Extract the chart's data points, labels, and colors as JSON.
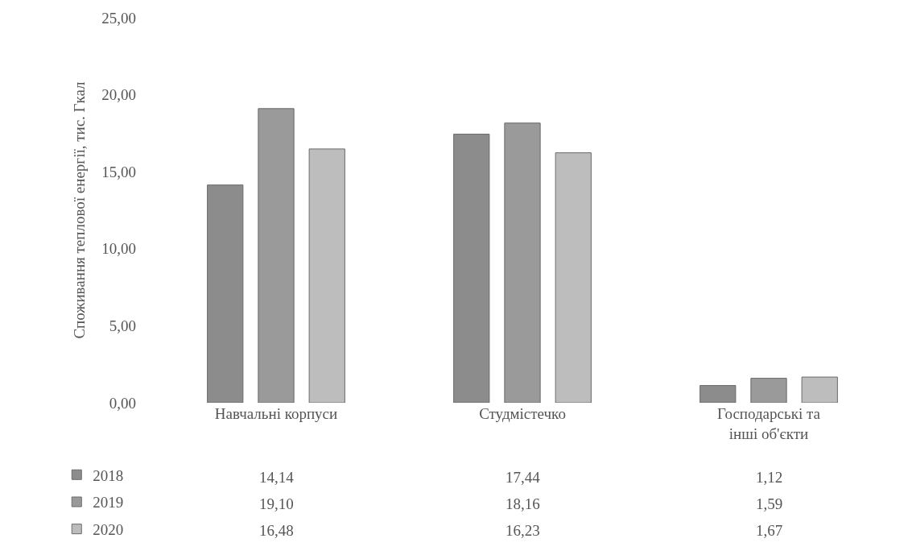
{
  "chart_data": {
    "type": "bar",
    "ylabel": "Споживання теплової енергії, тис. Гкал",
    "categories": [
      "Навчальні корпуси",
      "Студмістечко",
      "Господарські та інші об'єкти"
    ],
    "series": [
      {
        "name": "2018",
        "color": "#8c8c8c",
        "values": [
          14.14,
          17.44,
          1.12
        ],
        "value_labels": [
          "14,14",
          "17,44",
          "1,12"
        ]
      },
      {
        "name": "2019",
        "color": "#9a9a9a",
        "values": [
          19.1,
          18.16,
          1.59
        ],
        "value_labels": [
          "19,10",
          "18,16",
          "1,59"
        ]
      },
      {
        "name": "2020",
        "color": "#bdbdbd",
        "values": [
          16.48,
          16.23,
          1.67
        ],
        "value_labels": [
          "16,48",
          "16,23",
          "1,67"
        ]
      }
    ],
    "ylim": [
      0,
      25
    ],
    "yticks": [
      {
        "value": 0,
        "label": "0,00"
      },
      {
        "value": 5,
        "label": "5,00"
      },
      {
        "value": 10,
        "label": "10,00"
      },
      {
        "value": 15,
        "label": "15,00"
      },
      {
        "value": 20,
        "label": "20,00"
      },
      {
        "value": 25,
        "label": "25,00"
      }
    ],
    "legend": "bottom left"
  }
}
